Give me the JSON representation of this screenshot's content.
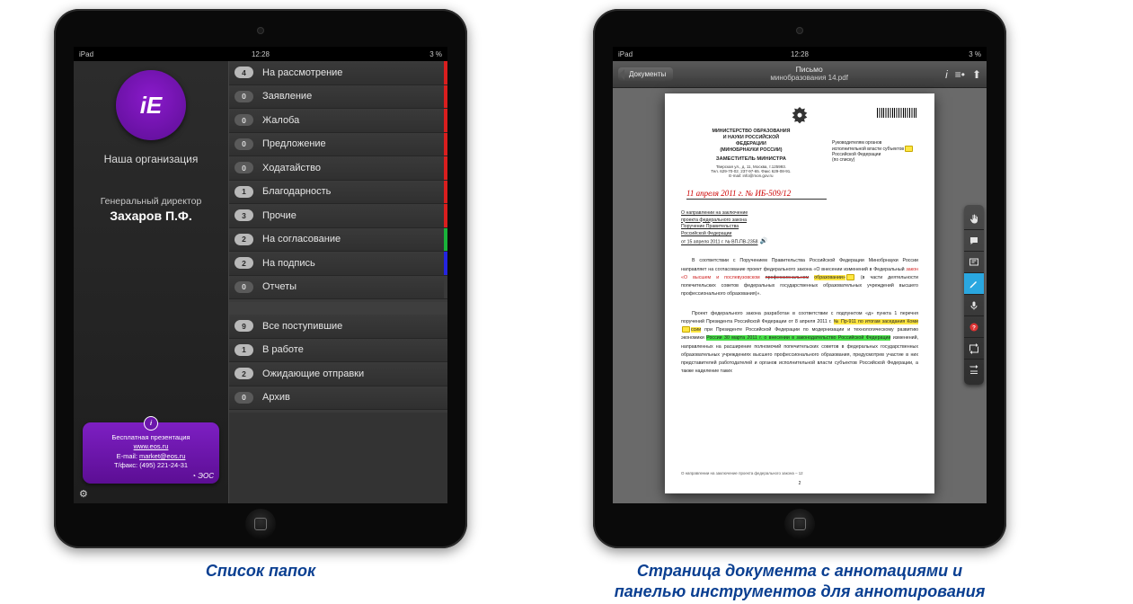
{
  "statusbar": {
    "carrier": "iPad",
    "time": "12:28",
    "battery": "3 %"
  },
  "left": {
    "logo_text": "iE",
    "org_name": "Наша организация",
    "user_role": "Генеральный директор",
    "user_name": "Захаров П.Ф.",
    "info": {
      "line1": "Бесплатная презентация",
      "link1": "www.eos.ru",
      "email_label": "E-mail:",
      "email": "market@eos.ru",
      "phone_label": "Т/факс:",
      "phone": "(495) 221-24-31",
      "brand": "ЭОС"
    },
    "groups": [
      {
        "items": [
          {
            "count": "4",
            "label": "На рассмотрение",
            "stripe": "#d91e1e",
            "badge_dark": false
          },
          {
            "count": "0",
            "label": "Заявление",
            "stripe": "#d91e1e",
            "badge_dark": true
          },
          {
            "count": "0",
            "label": "Жалоба",
            "stripe": "#d91e1e",
            "badge_dark": true
          },
          {
            "count": "0",
            "label": "Предложение",
            "stripe": "#d91e1e",
            "badge_dark": true
          },
          {
            "count": "0",
            "label": "Ходатайство",
            "stripe": "#d91e1e",
            "badge_dark": true
          },
          {
            "count": "1",
            "label": "Благодарность",
            "stripe": "#d91e1e",
            "badge_dark": false
          },
          {
            "count": "3",
            "label": "Прочие",
            "stripe": "#d91e1e",
            "badge_dark": false
          },
          {
            "count": "2",
            "label": "На согласование",
            "stripe": "#19b23a",
            "badge_dark": false
          },
          {
            "count": "2",
            "label": "На подпись",
            "stripe": "#2424e0",
            "badge_dark": false
          },
          {
            "count": "0",
            "label": "Отчеты",
            "stripe": "#3a3a3a",
            "badge_dark": true
          }
        ]
      },
      {
        "items": [
          {
            "count": "9",
            "label": "Все поступившие",
            "badge_dark": false
          },
          {
            "count": "1",
            "label": "В работе",
            "badge_dark": false
          },
          {
            "count": "2",
            "label": "Ожидающие отправки",
            "badge_dark": false
          },
          {
            "count": "0",
            "label": "Архив",
            "badge_dark": true
          }
        ]
      }
    ],
    "caption": "Список папок"
  },
  "right": {
    "topbar": {
      "back": "Документы",
      "title1": "Письмо",
      "title2": "минобразования 14.pdf"
    },
    "document": {
      "ministry_l1": "МИНИСТЕРСТВО ОБРАЗОВАНИЯ",
      "ministry_l2": "И НАУКИ РОССИЙСКОЙ",
      "ministry_l3": "ФЕДЕРАЦИИ",
      "ministry_l4": "(МИНОБРНАУКИ РОССИИ)",
      "post": "ЗАМЕСТИТЕЛЬ МИНИСТРА",
      "address_l1": "Тверская ул., д. 11, Москва, т.125993.",
      "address_l2": "Тел. 629-70-02. 237-97-65. Факс 629-08-91.",
      "address_l3": "E-mail: info@mon.gov.ru",
      "recipient_l1": "Руководителям органов",
      "recipient_l2": "исполнительной власти субъектов",
      "recipient_l3": "Российской Федерации",
      "recipient_l4": "(по списку)",
      "handwriting": "11 апреля 2011 г.   № ИБ-509/12",
      "subj_l1": "О направлении на заключение",
      "subj_l2": "проекта федерального закона",
      "subj_l3": "Поручение Правительства",
      "subj_l4": "Российской Федерации",
      "subj_l5": "от 15 апреля 2011 г. № ВП-ПВ-2358",
      "body": "В соответствии с Поручением Правительства Российской Федерации Минобрнауки России направляет на согласование проект федерального закона «О внесении изменений в Федеральный закон «О высшем и послевузовском профессиональном образовании» (в части деятельности попечительских советов федеральных государственных образовательных учреждений высшего профессионального образования)».",
      "body2_pre": "Проект федерального закона разработан в соответствии с подпунктом «д» пункта 1 перечня поручений Президента Российской Федерации от 8 апреля 2011 г.",
      "body2_hl": "№ Пр-911 по итогам заседания Комиссии при Президенте Российской Федерации по модернизации и технологическому развитию экономики России 30 марта 2011 г. о внесении в законодательство Российской Федерации",
      "body2_post": " изменений, направленных на расширение полномочий попечительских советов в федеральных государственных образовательных учреждениях высшего профессионального образования, предусмотрев участие в них представителей работодателей и органов исполнительной власти субъектов Российской Федерации, а также наделение таких",
      "footnote": "О направлении на заключение проекта федерального закона – 12",
      "pagenum": "2"
    },
    "tools": [
      {
        "name": "hand-tool",
        "glyph": "hand",
        "active": false
      },
      {
        "name": "comment-tool",
        "glyph": "bubble",
        "active": false
      },
      {
        "name": "text-tool",
        "glyph": "text",
        "active": false
      },
      {
        "name": "pen-tool",
        "glyph": "pen",
        "active": true
      },
      {
        "name": "mic-tool",
        "glyph": "mic",
        "active": false
      },
      {
        "name": "help-tool",
        "glyph": "help",
        "active": false
      },
      {
        "name": "goto-tool",
        "glyph": "goto",
        "active": false
      },
      {
        "name": "list-tool",
        "glyph": "list",
        "active": false
      }
    ],
    "caption_l1": "Страница документа с аннотациями и",
    "caption_l2": "панелью инструментов для аннотирования"
  }
}
